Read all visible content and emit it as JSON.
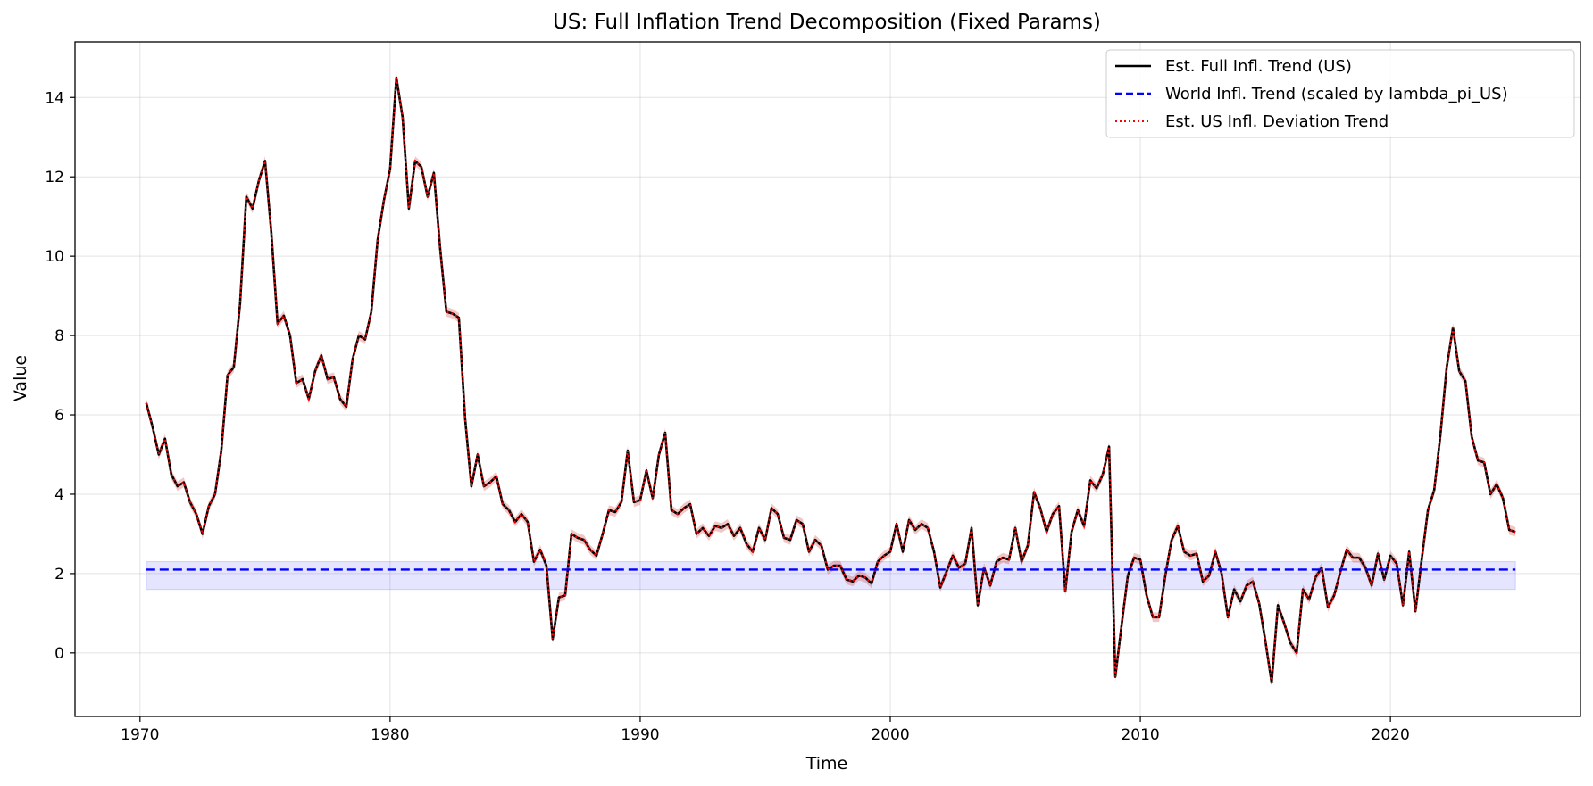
{
  "chart_data": {
    "type": "line",
    "title": "US: Full Inflation Trend Decomposition (Fixed Params)",
    "xlabel": "Time",
    "ylabel": "Value",
    "xlim": [
      1967.4,
      2027.6
    ],
    "ylim": [
      -1.6,
      15.4
    ],
    "xticks": [
      1970,
      1980,
      1990,
      2000,
      2010,
      2020
    ],
    "xtick_labels": [
      "1970",
      "1980",
      "1990",
      "2000",
      "2010",
      "2020"
    ],
    "yticks": [
      0,
      2,
      4,
      6,
      8,
      10,
      12,
      14
    ],
    "ytick_labels": [
      "0",
      "2",
      "4",
      "6",
      "8",
      "10",
      "12",
      "14"
    ],
    "grid": true,
    "legend_position": "top-right",
    "colors": {
      "full_trend": "#000000",
      "world_trend": "#0000ff",
      "world_band": "#0000ff",
      "deviation_trend": "#ff0000",
      "deviation_band": "#cc3333"
    },
    "x": [
      1970.25,
      1970.5,
      1970.75,
      1971.0,
      1971.25,
      1971.5,
      1971.75,
      1972.0,
      1972.25,
      1972.5,
      1972.75,
      1973.0,
      1973.25,
      1973.5,
      1973.75,
      1974.0,
      1974.25,
      1974.5,
      1974.75,
      1975.0,
      1975.25,
      1975.5,
      1975.75,
      1976.0,
      1976.25,
      1976.5,
      1976.75,
      1977.0,
      1977.25,
      1977.5,
      1977.75,
      1978.0,
      1978.25,
      1978.5,
      1978.75,
      1979.0,
      1979.25,
      1979.5,
      1979.75,
      1980.0,
      1980.25,
      1980.5,
      1980.75,
      1981.0,
      1981.25,
      1981.5,
      1981.75,
      1982.0,
      1982.25,
      1982.5,
      1982.75,
      1983.0,
      1983.25,
      1983.5,
      1983.75,
      1984.0,
      1984.25,
      1984.5,
      1984.75,
      1985.0,
      1985.25,
      1985.5,
      1985.75,
      1986.0,
      1986.25,
      1986.5,
      1986.75,
      1987.0,
      1987.25,
      1987.5,
      1987.75,
      1988.0,
      1988.25,
      1988.5,
      1988.75,
      1989.0,
      1989.25,
      1989.5,
      1989.75,
      1990.0,
      1990.25,
      1990.5,
      1990.75,
      1991.0,
      1991.25,
      1991.5,
      1991.75,
      1992.0,
      1992.25,
      1992.5,
      1992.75,
      1993.0,
      1993.25,
      1993.5,
      1993.75,
      1994.0,
      1994.25,
      1994.5,
      1994.75,
      1995.0,
      1995.25,
      1995.5,
      1995.75,
      1996.0,
      1996.25,
      1996.5,
      1996.75,
      1997.0,
      1997.25,
      1997.5,
      1997.75,
      1998.0,
      1998.25,
      1998.5,
      1998.75,
      1999.0,
      1999.25,
      1999.5,
      1999.75,
      2000.0,
      2000.25,
      2000.5,
      2000.75,
      2001.0,
      2001.25,
      2001.5,
      2001.75,
      2002.0,
      2002.25,
      2002.5,
      2002.75,
      2003.0,
      2003.25,
      2003.5,
      2003.75,
      2004.0,
      2004.25,
      2004.5,
      2004.75,
      2005.0,
      2005.25,
      2005.5,
      2005.75,
      2006.0,
      2006.25,
      2006.5,
      2006.75,
      2007.0,
      2007.25,
      2007.5,
      2007.75,
      2008.0,
      2008.25,
      2008.5,
      2008.75,
      2009.0,
      2009.25,
      2009.5,
      2009.75,
      2010.0,
      2010.25,
      2010.5,
      2010.75,
      2011.0,
      2011.25,
      2011.5,
      2011.75,
      2012.0,
      2012.25,
      2012.5,
      2012.75,
      2013.0,
      2013.25,
      2013.5,
      2013.75,
      2014.0,
      2014.25,
      2014.5,
      2014.75,
      2015.0,
      2015.25,
      2015.5,
      2015.75,
      2016.0,
      2016.25,
      2016.5,
      2016.75,
      2017.0,
      2017.25,
      2017.5,
      2017.75,
      2018.0,
      2018.25,
      2018.5,
      2018.75,
      2019.0,
      2019.25,
      2019.5,
      2019.75,
      2020.0,
      2020.25,
      2020.5,
      2020.75,
      2021.0,
      2021.25,
      2021.5,
      2021.75,
      2022.0,
      2022.25,
      2022.5,
      2022.75,
      2023.0,
      2023.25,
      2023.5,
      2023.75,
      2024.0,
      2024.25,
      2024.5,
      2024.75,
      2025.0
    ],
    "series": [
      {
        "name": "Est. Full Infl. Trend (US)",
        "style": "solid",
        "values": [
          6.3,
          5.7,
          5.0,
          5.4,
          4.5,
          4.2,
          4.3,
          3.8,
          3.5,
          3.0,
          3.7,
          4.0,
          5.1,
          7.0,
          7.2,
          8.8,
          11.5,
          11.2,
          11.9,
          12.4,
          10.6,
          8.3,
          8.5,
          8.0,
          6.8,
          6.9,
          6.4,
          7.1,
          7.5,
          6.9,
          6.95,
          6.4,
          6.2,
          7.4,
          8.0,
          7.9,
          8.6,
          10.4,
          11.4,
          12.2,
          14.5,
          13.5,
          11.2,
          12.4,
          12.25,
          11.5,
          12.1,
          10.2,
          8.6,
          8.55,
          8.45,
          5.9,
          4.2,
          5.0,
          4.2,
          4.3,
          4.45,
          3.75,
          3.6,
          3.3,
          3.5,
          3.3,
          2.3,
          2.6,
          2.2,
          0.35,
          1.4,
          1.45,
          3.0,
          2.9,
          2.85,
          2.6,
          2.45,
          3.0,
          3.6,
          3.55,
          3.8,
          5.1,
          3.8,
          3.85,
          4.6,
          3.9,
          5.0,
          5.55,
          3.6,
          3.5,
          3.65,
          3.75,
          3.0,
          3.15,
          2.95,
          3.2,
          3.15,
          3.25,
          2.95,
          3.15,
          2.75,
          2.55,
          3.15,
          2.85,
          3.65,
          3.5,
          2.9,
          2.85,
          3.35,
          3.25,
          2.55,
          2.85,
          2.7,
          2.1,
          2.2,
          2.2,
          1.85,
          1.8,
          1.95,
          1.9,
          1.75,
          2.3,
          2.45,
          2.55,
          3.25,
          2.55,
          3.35,
          3.1,
          3.25,
          3.15,
          2.55,
          1.65,
          2.05,
          2.45,
          2.15,
          2.25,
          3.15,
          1.2,
          2.15,
          1.7,
          2.3,
          2.4,
          2.35,
          3.15,
          2.3,
          2.7,
          4.05,
          3.65,
          3.05,
          3.5,
          3.7,
          1.55,
          3.05,
          3.6,
          3.2,
          4.35,
          4.15,
          4.5,
          5.2,
          -0.6,
          0.7,
          1.95,
          2.4,
          2.35,
          1.45,
          0.9,
          0.9,
          1.95,
          2.85,
          3.2,
          2.55,
          2.45,
          2.5,
          1.8,
          1.95,
          2.55,
          2.0,
          0.9,
          1.6,
          1.3,
          1.7,
          1.8,
          1.25,
          0.3,
          -0.75,
          1.2,
          0.75,
          0.25,
          0.0,
          1.6,
          1.35,
          1.9,
          2.15,
          1.15,
          1.45,
          2.05,
          2.6,
          2.4,
          2.4,
          2.15,
          1.7,
          2.5,
          1.85,
          2.45,
          2.25,
          1.2,
          2.55,
          1.05,
          2.35,
          3.6,
          4.1,
          5.5,
          7.2,
          8.2,
          7.1,
          6.85,
          5.45,
          4.85,
          4.8,
          4.0,
          4.25,
          3.9,
          3.1,
          3.05
        ]
      },
      {
        "name": "World Infl. Trend (scaled by lambda_pi_US)",
        "style": "dashed",
        "values": "constant",
        "level": 2.1,
        "band": [
          1.6,
          2.3
        ]
      },
      {
        "name": "Est. US Infl. Deviation Trend",
        "style": "dotted",
        "values": "same_as_full_trend",
        "band_halfwidth": 0.12
      }
    ]
  }
}
